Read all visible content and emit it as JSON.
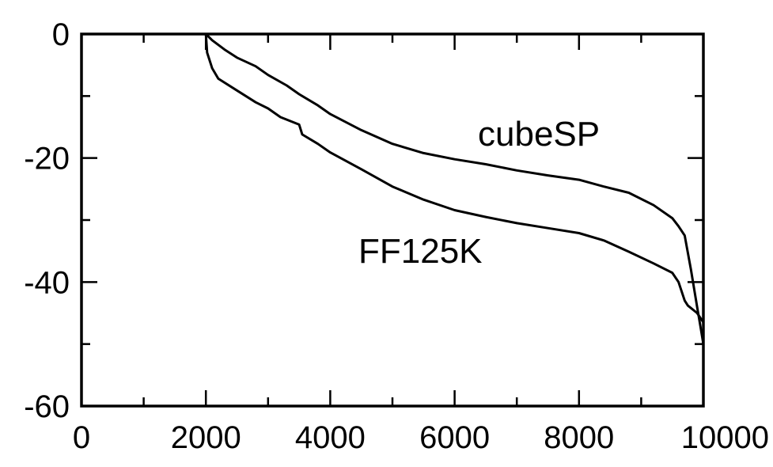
{
  "chart_data": {
    "type": "line",
    "title": "",
    "xlabel": "",
    "ylabel": "",
    "xlim": [
      0,
      10000
    ],
    "ylim": [
      -60,
      0
    ],
    "xticks": [
      0,
      2000,
      4000,
      6000,
      8000,
      10000
    ],
    "xminor": [
      1000,
      3000,
      5000,
      7000,
      9000
    ],
    "yticks": [
      0,
      -20,
      -40,
      -60
    ],
    "yminor": [
      -10,
      -30,
      -50
    ],
    "x_tick_labels": [
      "0",
      "2000",
      "4000",
      "6000",
      "8000",
      "10000"
    ],
    "y_tick_labels": [
      "0",
      "-20",
      "-40",
      "-60"
    ],
    "grid": false,
    "legend": "none",
    "line_color": "#000000",
    "annotations": [
      {
        "text": "cubeSP",
        "series": "upper"
      },
      {
        "text": "FF125K",
        "series": "lower"
      }
    ],
    "series": [
      {
        "x": [
          2000,
          2100,
          2300,
          2500,
          2800,
          3000,
          3300,
          3500,
          3800,
          4000,
          4500,
          5000,
          5500,
          6000,
          6500,
          7000,
          7500,
          8000,
          8400,
          8800,
          9200,
          9500,
          9600,
          9700,
          9800,
          9900,
          9950,
          10000
        ],
        "values": [
          0,
          -1,
          -2.5,
          -3.8,
          -5.2,
          -6.6,
          -8.3,
          -9.7,
          -11.5,
          -12.9,
          -15.5,
          -17.7,
          -19.2,
          -20.2,
          -21,
          -22,
          -22.8,
          -23.5,
          -24.6,
          -25.6,
          -27.6,
          -29.7,
          -31,
          -32.5,
          -38,
          -44,
          -47,
          -50
        ]
      },
      {
        "x": [
          2000,
          2020,
          2100,
          2200,
          2500,
          2800,
          3000,
          3200,
          3500,
          3550,
          3800,
          4000,
          4500,
          5000,
          5500,
          6000,
          6500,
          7000,
          7500,
          8000,
          8400,
          8800,
          9200,
          9500,
          9600,
          9700,
          9750,
          9800,
          9900,
          10000
        ],
        "values": [
          0,
          -3,
          -5.5,
          -7.2,
          -9.1,
          -11,
          -12,
          -13.4,
          -14.6,
          -16.2,
          -17.7,
          -19.1,
          -21.8,
          -24.6,
          -26.7,
          -28.4,
          -29.5,
          -30.5,
          -31.3,
          -32.1,
          -33.3,
          -35.1,
          -37,
          -38.5,
          -40,
          -43,
          -43.8,
          -44.2,
          -45,
          -46.5
        ]
      }
    ]
  }
}
